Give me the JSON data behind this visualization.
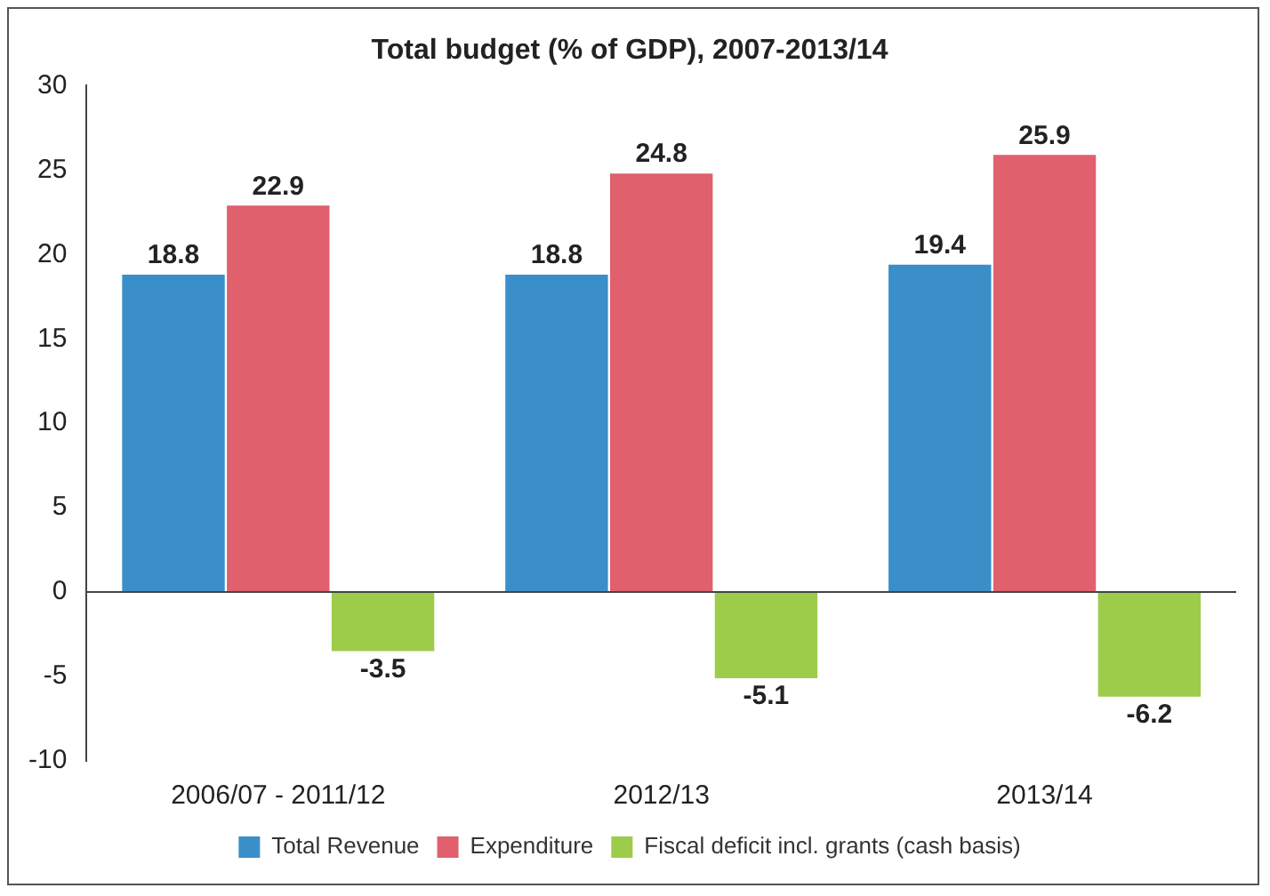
{
  "chart_data": {
    "type": "bar",
    "title": "Total budget (% of GDP), 2007-2013/14",
    "categories": [
      "2006/07 - 2011/12",
      "2012/13",
      "2013/14"
    ],
    "series": [
      {
        "name": "Total Revenue",
        "color": "#3a8fc9",
        "values": [
          18.8,
          18.8,
          19.4
        ]
      },
      {
        "name": "Expenditure",
        "color": "#e0606e",
        "values": [
          22.9,
          24.8,
          25.9
        ]
      },
      {
        "name": "Fiscal deficit incl. grants (cash basis)",
        "color": "#9ccc4a",
        "values": [
          -3.5,
          -5.1,
          -6.2
        ]
      }
    ],
    "ylim": [
      -10,
      30
    ],
    "yticks": [
      -10,
      -5,
      0,
      5,
      10,
      15,
      20,
      25,
      30
    ],
    "legend": "bottom",
    "data_labels": true
  }
}
